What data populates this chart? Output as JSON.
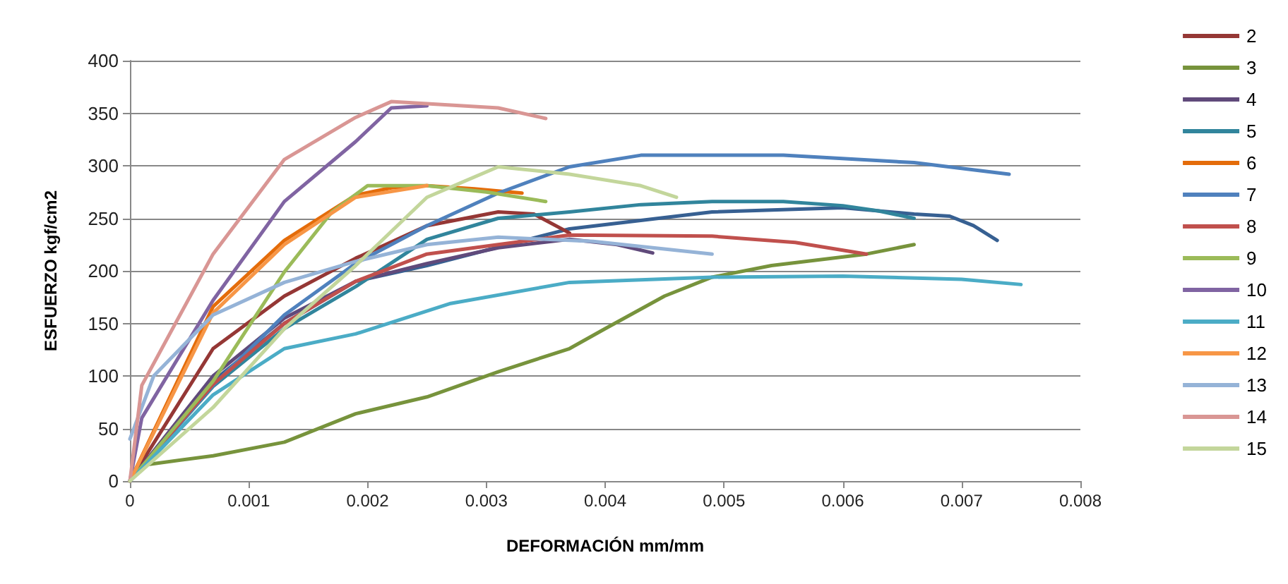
{
  "chart_data": {
    "type": "line",
    "xlabel": "DEFORMACIÓN mm/mm",
    "ylabel": "ESFUERZO kgf/cm2",
    "xlim": [
      0,
      0.008
    ],
    "xticks": [
      0,
      0.001,
      0.002,
      0.003,
      0.004,
      0.005,
      0.006,
      0.007,
      0.008
    ],
    "ylim": [
      0,
      400
    ],
    "yticks": [
      0,
      50,
      100,
      150,
      200,
      250,
      300,
      350,
      400
    ],
    "grid": "y",
    "legend": "right",
    "marker": "none",
    "line_style": "solid",
    "series": [
      {
        "color": "#376092",
        "x": [
          0,
          0.0007,
          0.0013,
          0.0019,
          0.0025,
          0.0037,
          0.0049,
          0.006,
          0.0066,
          0.0069,
          0.0071,
          0.0073
        ],
        "values": [
          0,
          95,
          150,
          190,
          205,
          240,
          256,
          260,
          254,
          252,
          243,
          229
        ]
      },
      {
        "name": "2",
        "color": "#953735",
        "x": [
          0,
          0.0007,
          0.0013,
          0.0019,
          0.0025,
          0.0031,
          0.0034,
          0.0037
        ],
        "values": [
          0,
          126,
          176,
          212,
          243,
          256,
          254,
          236
        ]
      },
      {
        "name": "3",
        "color": "#77933c",
        "x": [
          0,
          0.0001,
          0.0007,
          0.0013,
          0.0019,
          0.0025,
          0.0031,
          0.0037,
          0.004,
          0.0045,
          0.0049,
          0.0054,
          0.0062,
          0.0066
        ],
        "values": [
          0,
          15,
          24,
          37,
          64,
          80,
          104,
          126,
          145,
          176,
          194,
          205,
          216,
          225
        ]
      },
      {
        "name": "4",
        "color": "#604a7b",
        "x": [
          0,
          0.0007,
          0.0013,
          0.0019,
          0.0025,
          0.0031,
          0.0037,
          0.0041,
          0.0044
        ],
        "values": [
          0,
          100,
          155,
          190,
          207,
          222,
          230,
          225,
          217
        ]
      },
      {
        "name": "5",
        "color": "#31859c",
        "x": [
          0,
          0.0007,
          0.0013,
          0.0019,
          0.0025,
          0.0031,
          0.0037,
          0.0043,
          0.0049,
          0.0055,
          0.006,
          0.0063,
          0.0066
        ],
        "values": [
          0,
          90,
          145,
          185,
          230,
          250,
          256,
          263,
          266,
          266,
          262,
          257,
          250
        ]
      },
      {
        "name": "6",
        "color": "#e46c0a",
        "x": [
          0,
          0.0007,
          0.0013,
          0.0019,
          0.0022,
          0.0025,
          0.0029,
          0.0033
        ],
        "values": [
          0,
          166,
          229,
          272,
          279,
          281,
          278,
          274
        ]
      },
      {
        "name": "7",
        "color": "#4f81bd",
        "x": [
          0,
          0.0007,
          0.0013,
          0.0019,
          0.0025,
          0.0031,
          0.0037,
          0.0043,
          0.0055,
          0.0066,
          0.0074
        ],
        "values": [
          0,
          91,
          158,
          207,
          243,
          274,
          299,
          310,
          310,
          303,
          292
        ]
      },
      {
        "name": "8",
        "color": "#c0504d",
        "x": [
          0,
          0.0007,
          0.0013,
          0.0019,
          0.0025,
          0.0031,
          0.0037,
          0.0049,
          0.0056,
          0.0062
        ],
        "values": [
          0,
          92,
          150,
          190,
          216,
          225,
          234,
          233,
          227,
          216
        ]
      },
      {
        "name": "9",
        "color": "#9bbb59",
        "x": [
          0,
          0.0007,
          0.0013,
          0.0017,
          0.002,
          0.0025,
          0.003,
          0.0035
        ],
        "values": [
          0,
          95,
          199,
          256,
          281,
          281,
          275,
          266
        ]
      },
      {
        "name": "10",
        "color": "#8064a2",
        "x": [
          0,
          0.0001,
          0.0007,
          0.0013,
          0.0019,
          0.0022,
          0.0025
        ],
        "values": [
          0,
          60,
          172,
          266,
          323,
          355,
          357
        ]
      },
      {
        "name": "11",
        "color": "#4bacc6",
        "x": [
          0,
          0.0007,
          0.0013,
          0.0019,
          0.0027,
          0.0037,
          0.0049,
          0.006,
          0.007,
          0.0075
        ],
        "values": [
          0,
          82,
          126,
          140,
          169,
          189,
          194,
          195,
          192,
          187
        ]
      },
      {
        "name": "12",
        "color": "#f79646",
        "x": [
          0,
          0.0007,
          0.0013,
          0.0019,
          0.0025
        ],
        "values": [
          0,
          160,
          225,
          270,
          281
        ]
      },
      {
        "name": "13",
        "color": "#95b3d7",
        "x": [
          0,
          0.0002,
          0.0007,
          0.0013,
          0.0019,
          0.0025,
          0.0031,
          0.0039,
          0.0049
        ],
        "values": [
          40,
          100,
          158,
          189,
          209,
          225,
          232,
          228,
          216
        ]
      },
      {
        "name": "14",
        "color": "#d99694",
        "x": [
          0,
          0.0001,
          0.0007,
          0.0013,
          0.0019,
          0.0022,
          0.0031,
          0.0035
        ],
        "values": [
          0,
          91,
          216,
          306,
          346,
          361,
          355,
          345
        ]
      },
      {
        "name": "15",
        "color": "#c3d69b",
        "x": [
          0,
          0.0007,
          0.0013,
          0.0019,
          0.0025,
          0.0031,
          0.0037,
          0.0043,
          0.0046
        ],
        "values": [
          0,
          70,
          145,
          205,
          270,
          299,
          292,
          281,
          270
        ]
      }
    ]
  }
}
